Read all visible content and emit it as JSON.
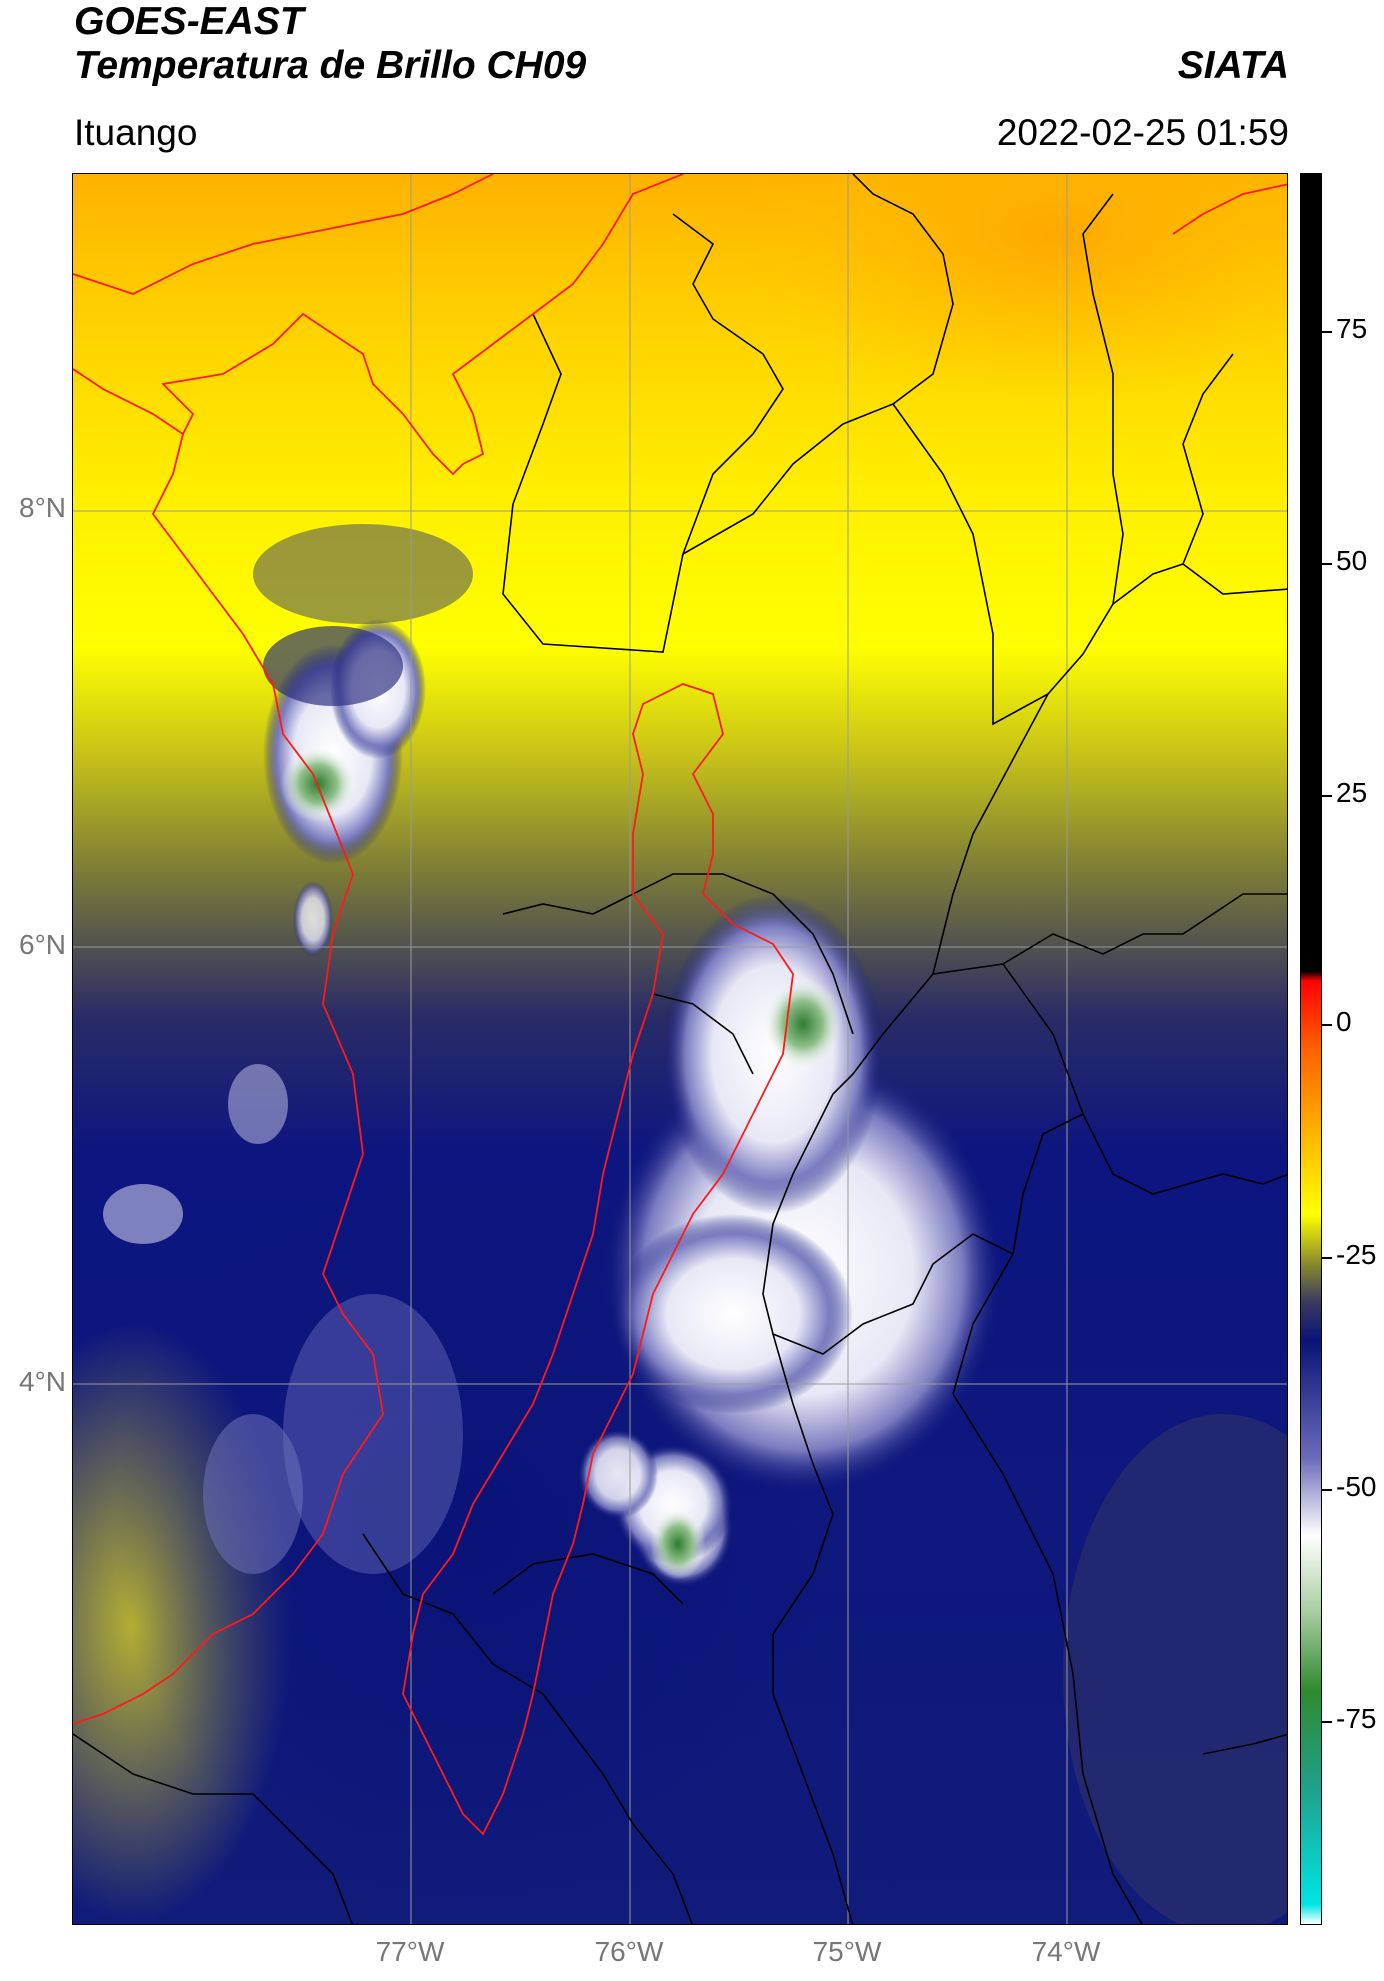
{
  "header": {
    "title_line1": "GOES-EAST",
    "title_line2": "Temperatura de Brillo CH09",
    "organization": "SIATA",
    "location": "Ituango",
    "timestamp": "2022-02-25 01:59"
  },
  "map": {
    "lat_labels": [
      "8°N",
      "6°N",
      "4°N"
    ],
    "lon_labels": [
      "77°W",
      "76°W",
      "75°W",
      "74°W"
    ],
    "region_outline_color": "#ff0000",
    "border_color": "#000000",
    "grid_color": "#9a9a9a"
  },
  "colorbar": {
    "tick_labels": [
      "75",
      "50",
      "25",
      "0",
      "-25",
      "-50",
      "-75"
    ],
    "stops": [
      {
        "value": 90,
        "color": "#000000"
      },
      {
        "value": 8,
        "color": "#000000"
      },
      {
        "value": 7,
        "color": "#ff0000"
      },
      {
        "value": 0,
        "color": "#ff6000"
      },
      {
        "value": -10,
        "color": "#ffc000"
      },
      {
        "value": -17,
        "color": "#ffff00"
      },
      {
        "value": -22,
        "color": "#8c8c2a"
      },
      {
        "value": -26,
        "color": "#3a3a60"
      },
      {
        "value": -30,
        "color": "#0a1478"
      },
      {
        "value": -42,
        "color": "#6a6ab8"
      },
      {
        "value": -50,
        "color": "#ffffff"
      },
      {
        "value": -58,
        "color": "#a8cca0"
      },
      {
        "value": -66,
        "color": "#2f8a2f"
      },
      {
        "value": -76,
        "color": "#1fa08a"
      },
      {
        "value": -88,
        "color": "#00e5e5"
      },
      {
        "value": -90,
        "color": "#ffffff"
      }
    ]
  }
}
